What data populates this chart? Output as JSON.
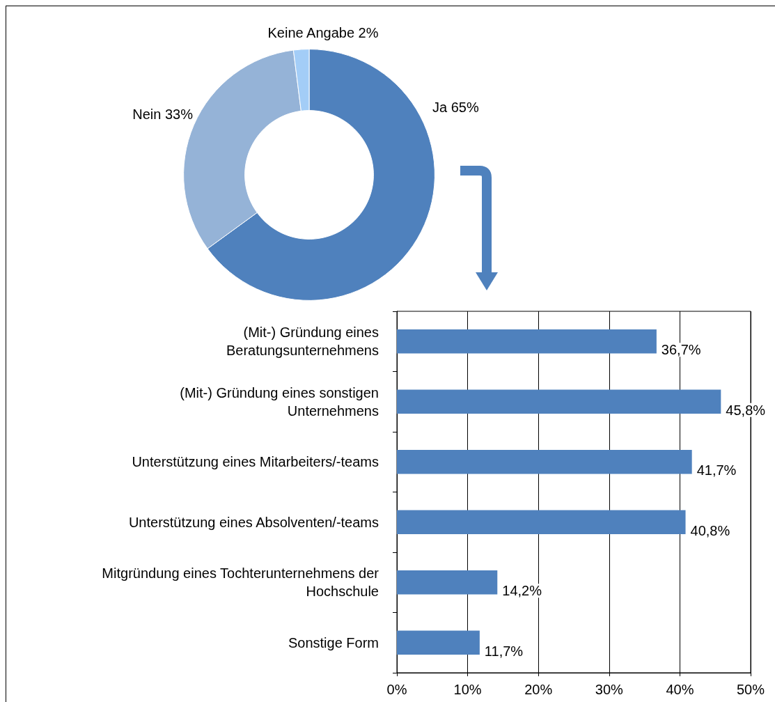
{
  "chart_data": [
    {
      "type": "donut",
      "categories": [
        "Ja",
        "Nein",
        "Keine Angabe"
      ],
      "values": [
        65,
        33,
        2
      ],
      "value_labels": [
        "65%",
        "33%",
        "2%"
      ],
      "colors": [
        "#4f81bd",
        "#95b3d7",
        "#a3cdf7"
      ],
      "legend": false
    },
    {
      "type": "bar",
      "orientation": "horizontal",
      "categories": [
        "(Mit-) Gründung eines\nBeratungsunternehmens",
        "(Mit-) Gründung eines sonstigen\nUnternehmens",
        "Unterstützung eines Mitarbeiters/-teams",
        "Unterstützung eines Absolventen/-teams",
        "Mitgründung eines Tochterunternehmens der\nHochschule",
        "Sonstige Form"
      ],
      "values": [
        36.7,
        45.8,
        41.7,
        40.8,
        14.2,
        11.7
      ],
      "value_labels": [
        "36,7%",
        "45,8%",
        "41,7%",
        "40,8%",
        "14,2%",
        "11,7%"
      ],
      "color": "#4f81bd",
      "xlim": [
        0,
        50
      ],
      "xticks": [
        {
          "value": 0,
          "label": "0%"
        },
        {
          "value": 10,
          "label": "10%"
        },
        {
          "value": 20,
          "label": "20%"
        },
        {
          "value": 30,
          "label": "30%"
        },
        {
          "value": 40,
          "label": "40%"
        },
        {
          "value": 50,
          "label": "50%"
        }
      ],
      "grid": "x",
      "legend": false
    }
  ]
}
